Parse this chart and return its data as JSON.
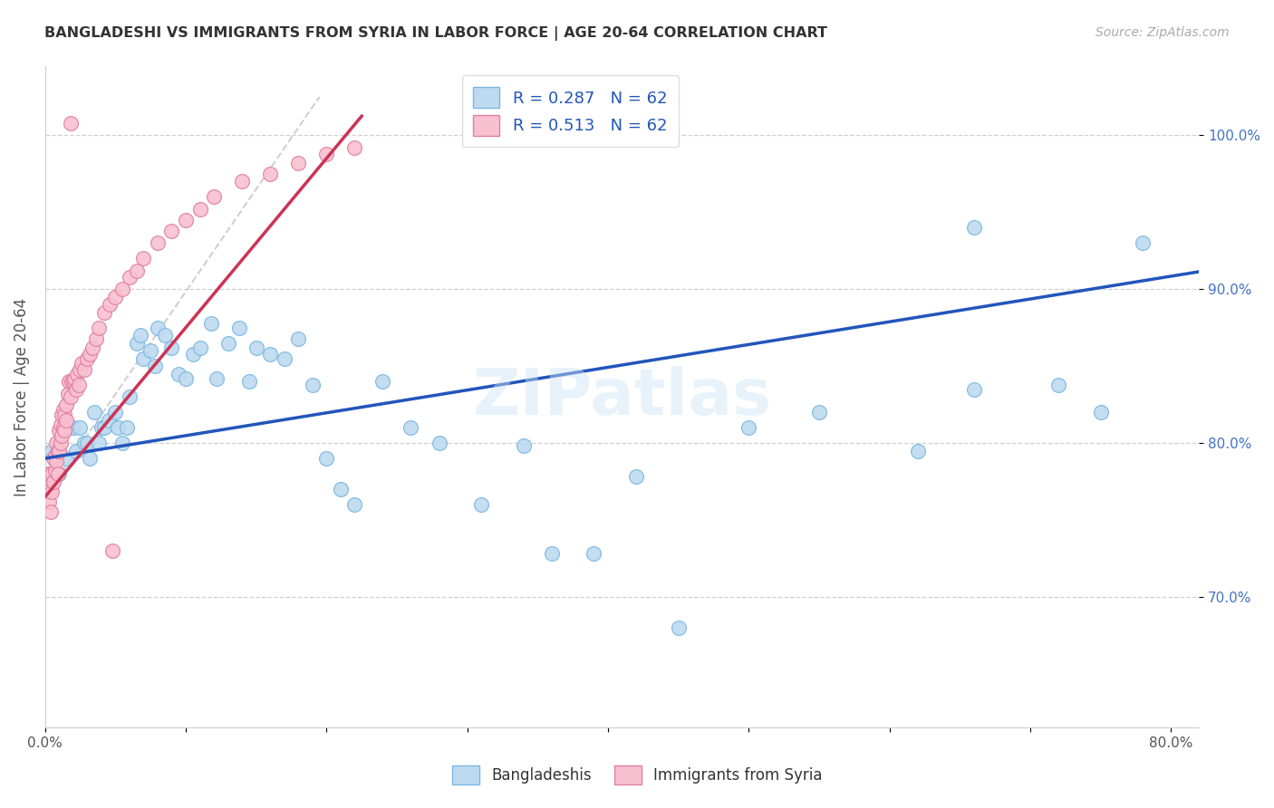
{
  "title": "BANGLADESHI VS IMMIGRANTS FROM SYRIA IN LABOR FORCE | AGE 20-64 CORRELATION CHART",
  "source": "Source: ZipAtlas.com",
  "ylabel": "In Labor Force | Age 20-64",
  "label_bangladeshis": "Bangladeshis",
  "label_syria": "Immigrants from Syria",
  "xmin": 0.0,
  "xmax": 0.82,
  "ymin": 0.615,
  "ymax": 1.045,
  "blue_color": "#bedaf0",
  "blue_edge": "#7ab8e0",
  "pink_color": "#f8c0d0",
  "pink_edge": "#e080a0",
  "reg_blue_color": "#2255bb",
  "reg_pink_color": "#cc3355",
  "legend_r1": "0.287",
  "legend_n1": "62",
  "legend_r2": "0.513",
  "legend_n2": "62",
  "watermark": "ZIPatlas",
  "blue_x": [
    0.005,
    0.01,
    0.015,
    0.018,
    0.02,
    0.022,
    0.025,
    0.028,
    0.03,
    0.032,
    0.035,
    0.038,
    0.04,
    0.042,
    0.045,
    0.05,
    0.052,
    0.055,
    0.058,
    0.06,
    0.065,
    0.068,
    0.07,
    0.075,
    0.078,
    0.08,
    0.085,
    0.09,
    0.095,
    0.1,
    0.105,
    0.11,
    0.118,
    0.122,
    0.13,
    0.138,
    0.145,
    0.15,
    0.16,
    0.17,
    0.18,
    0.19,
    0.2,
    0.21,
    0.22,
    0.24,
    0.26,
    0.28,
    0.31,
    0.34,
    0.36,
    0.39,
    0.42,
    0.45,
    0.5,
    0.55,
    0.62,
    0.66,
    0.72,
    0.75,
    0.66,
    0.78
  ],
  "blue_y": [
    0.795,
    0.78,
    0.79,
    0.81,
    0.81,
    0.795,
    0.81,
    0.8,
    0.8,
    0.79,
    0.82,
    0.8,
    0.81,
    0.81,
    0.815,
    0.82,
    0.81,
    0.8,
    0.81,
    0.83,
    0.865,
    0.87,
    0.855,
    0.86,
    0.85,
    0.875,
    0.87,
    0.862,
    0.845,
    0.842,
    0.858,
    0.862,
    0.878,
    0.842,
    0.865,
    0.875,
    0.84,
    0.862,
    0.858,
    0.855,
    0.868,
    0.838,
    0.79,
    0.77,
    0.76,
    0.84,
    0.81,
    0.8,
    0.76,
    0.798,
    0.728,
    0.728,
    0.778,
    0.68,
    0.81,
    0.82,
    0.795,
    0.835,
    0.838,
    0.82,
    0.94,
    0.93
  ],
  "pink_x": [
    0.002,
    0.003,
    0.004,
    0.004,
    0.005,
    0.005,
    0.006,
    0.006,
    0.007,
    0.007,
    0.008,
    0.008,
    0.009,
    0.009,
    0.01,
    0.01,
    0.011,
    0.011,
    0.012,
    0.012,
    0.013,
    0.013,
    0.014,
    0.014,
    0.015,
    0.015,
    0.016,
    0.017,
    0.018,
    0.019,
    0.02,
    0.021,
    0.022,
    0.023,
    0.024,
    0.025,
    0.026,
    0.028,
    0.03,
    0.032,
    0.034,
    0.036,
    0.038,
    0.042,
    0.046,
    0.05,
    0.055,
    0.06,
    0.065,
    0.07,
    0.08,
    0.09,
    0.1,
    0.11,
    0.12,
    0.14,
    0.16,
    0.18,
    0.2,
    0.22,
    0.048,
    0.018
  ],
  "pink_y": [
    0.78,
    0.762,
    0.77,
    0.755,
    0.768,
    0.78,
    0.775,
    0.79,
    0.782,
    0.792,
    0.788,
    0.8,
    0.795,
    0.78,
    0.795,
    0.808,
    0.8,
    0.812,
    0.805,
    0.818,
    0.81,
    0.822,
    0.818,
    0.808,
    0.825,
    0.815,
    0.832,
    0.84,
    0.83,
    0.84,
    0.84,
    0.842,
    0.835,
    0.845,
    0.838,
    0.848,
    0.852,
    0.848,
    0.855,
    0.858,
    0.862,
    0.868,
    0.875,
    0.885,
    0.89,
    0.895,
    0.9,
    0.908,
    0.912,
    0.92,
    0.93,
    0.938,
    0.945,
    0.952,
    0.96,
    0.97,
    0.975,
    0.982,
    0.988,
    0.992,
    0.73,
    1.008
  ]
}
